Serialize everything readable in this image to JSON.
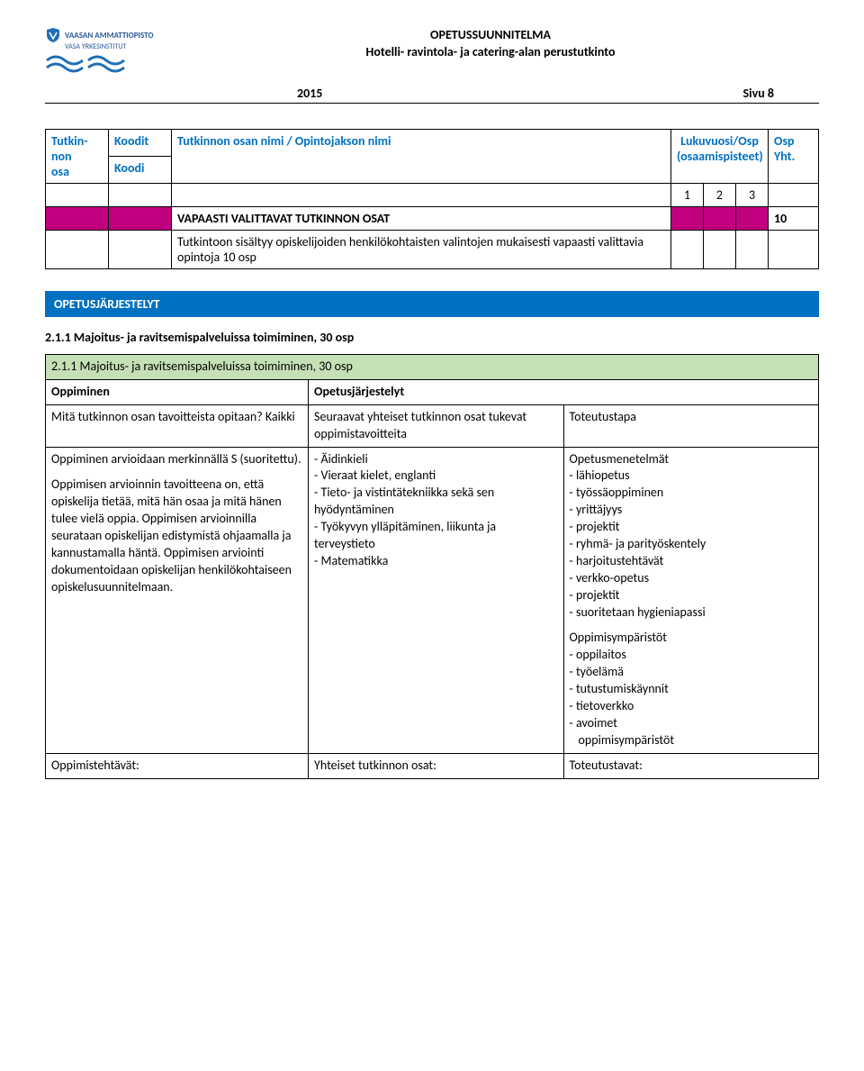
{
  "header": {
    "logo_line1": "VAASAN AMMATTIOPISTO",
    "logo_line2": "VASA YRKESINSTITUT",
    "title_line1": "OPETUSSUUNNITELMA",
    "title_line2": "Hotelli- ravintola- ja catering-alan perustutkinto",
    "year": "2015",
    "page_label": "Sivu 8"
  },
  "colors": {
    "blue": "#0070c0",
    "magenta": "#c0007f",
    "green": "#c5e0b4",
    "logo_blue": "#1f6fb5",
    "logo_text": "#2a5a9a",
    "white": "#ffffff"
  },
  "main_table": {
    "col1_hdr_l1": "Tutkin-",
    "col1_hdr_l2": "non",
    "col1_hdr_l3": "osa",
    "col2_hdr": "Koodit",
    "col2_sub": "Koodi",
    "col3_hdr": "Tutkinnon osan nimi  /  Opintojakson nimi",
    "col4_hdr_l1": "Lukuvuosi/Osp",
    "col4_hdr_l2": "(osaamispisteet)",
    "col5_hdr_l1": "Osp",
    "col5_hdr_l2": "Yht.",
    "n1": "1",
    "n2": "2",
    "n3": "3",
    "magenta_label": "VAPAASTI VALITTAVAT TUTKINNON OSAT",
    "magenta_val": "10",
    "body_text": "Tutkintoon sisältyy opiskelijoiden henkilökohtaisten valintojen mukaisesti vapaasti valittavia opintoja 10 osp"
  },
  "section_bar": "OPETUSJÄRJESTELYT",
  "section_heading": "2.1.1 Majoitus- ja ravitsemispalveluissa toimiminen, 30 osp",
  "learning_table": {
    "row0": {
      "title": "2.1.1 Majoitus- ja ravitsemispalveluissa toimiminen, 30 osp"
    },
    "row1": {
      "c1": "Oppiminen",
      "c2": "Opetusjärjestelyt"
    },
    "row2": {
      "c1": "Mitä tutkinnon osan tavoitteista opitaan? Kaikki",
      "c2": "Seuraavat yhteiset tutkinnon osat tukevat oppimistavoitteita",
      "c3": "Toteutustapa"
    },
    "row3": {
      "c1_p1": "Oppiminen arvioidaan merkinnällä S (suoritettu).",
      "c1_p2": "Oppimisen arvioinnin tavoitteena on, että opiskelija tietää, mitä hän osaa ja mitä hänen tulee vielä oppia. Oppimisen arvioinnilla seurataan opiskelijan edistymistä ohjaamalla ja kannustamalla häntä. Oppimisen arviointi dokumentoidaan opiskelijan henkilökohtaiseen opiskelusuunnitelmaan.",
      "c2_items": [
        "Äidinkieli",
        "Vieraat kielet, englanti",
        "Tieto- ja vistintätekniikka sekä sen hyödyntäminen",
        "Työkyvyn ylläpitäminen, liikunta ja terveystieto",
        "Matematikka"
      ],
      "c3_heading1": "Opetusmenetelmät",
      "c3_list1": [
        "lähiopetus",
        "työssäoppiminen",
        "yrittäjyys",
        "projektit",
        "ryhmä- ja parityöskentely",
        "harjoitustehtävät",
        "verkko-opetus",
        "projektit",
        "suoritetaan hygieniapassi"
      ],
      "c3_heading2": "Oppimisympäristöt",
      "c3_list2": [
        "oppilaitos",
        "työelämä",
        "tutustumiskäynnit",
        "tietoverkko",
        "avoimet"
      ],
      "c3_last_indent": "oppimisympäristöt"
    },
    "row4": {
      "c1": "Oppimistehtävät:",
      "c2": "Yhteiset tutkinnon osat:",
      "c3": "Toteutustavat:"
    }
  }
}
